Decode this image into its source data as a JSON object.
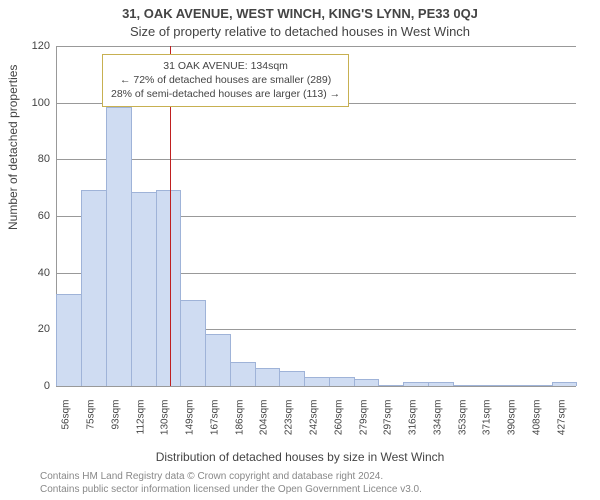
{
  "chart": {
    "type": "histogram",
    "title_main": "31, OAK AVENUE, WEST WINCH, KING'S LYNN, PE33 0QJ",
    "title_sub": "Size of property relative to detached houses in West Winch",
    "title_fontsize": 13,
    "y_label": "Number of detached properties",
    "x_label": "Distribution of detached houses by size in West Winch",
    "label_fontsize": 12,
    "background_color": "#ffffff",
    "grid_color": "#999999",
    "axis_color": "#999999",
    "text_color": "#444444",
    "bar_fill": "#cfdcf2",
    "bar_stroke": "#9fb3d8",
    "ylim": [
      0,
      120
    ],
    "ytick_step": 20,
    "yticks": [
      0,
      20,
      40,
      60,
      80,
      100,
      120
    ],
    "categories": [
      "56sqm",
      "75sqm",
      "93sqm",
      "112sqm",
      "130sqm",
      "149sqm",
      "167sqm",
      "186sqm",
      "204sqm",
      "223sqm",
      "242sqm",
      "260sqm",
      "279sqm",
      "297sqm",
      "316sqm",
      "334sqm",
      "353sqm",
      "371sqm",
      "390sqm",
      "408sqm",
      "427sqm"
    ],
    "values": [
      32,
      69,
      98,
      68,
      69,
      30,
      18,
      8,
      6,
      5,
      3,
      3,
      2,
      0,
      1,
      1,
      0,
      0,
      0,
      0,
      1
    ],
    "bar_width_ratio": 0.96,
    "marker": {
      "value_sqm": 134,
      "color": "#c02020",
      "width": 1
    },
    "annotation": {
      "border_color": "#c7b051",
      "bg_color": "#ffffff",
      "lines": [
        "31 OAK AVENUE: 134sqm",
        "← 72% of detached houses are smaller (289)",
        "28% of semi-detached houses are larger (113) →"
      ]
    },
    "footer_lines": [
      "Contains HM Land Registry data © Crown copyright and database right 2024.",
      "Contains public sector information licensed under the Open Government Licence v3.0."
    ],
    "footer_fontsize": 10,
    "footer_color": "#888888"
  }
}
